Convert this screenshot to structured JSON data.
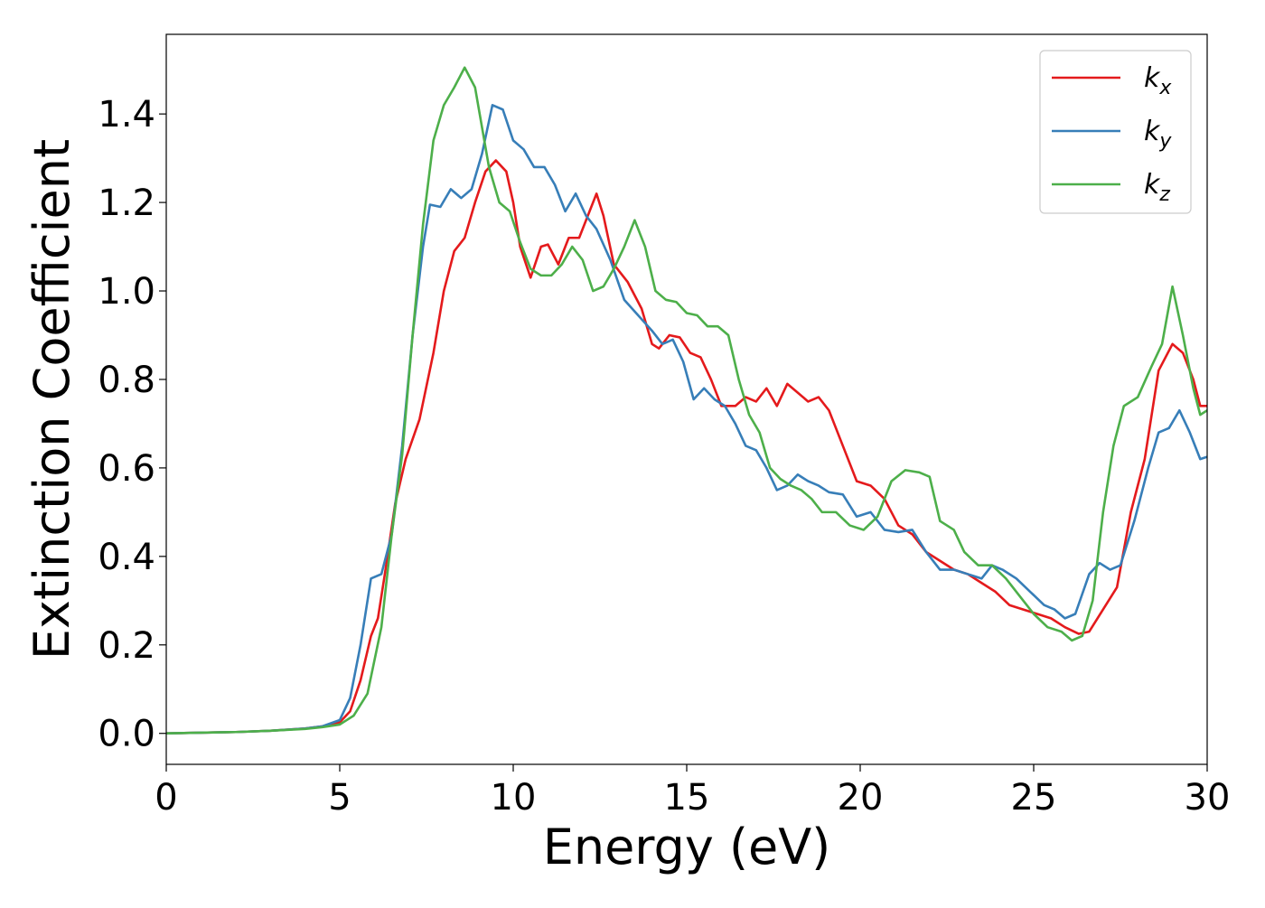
{
  "chart_data": {
    "type": "line",
    "title": "",
    "xlabel": "Energy (eV)",
    "ylabel": "Extinction Coefficient",
    "xlim": [
      0,
      30
    ],
    "ylim": [
      -0.07,
      1.58
    ],
    "xticks": [
      0,
      5,
      10,
      15,
      20,
      25,
      30
    ],
    "xtick_labels": [
      "0",
      "5",
      "10",
      "15",
      "20",
      "25",
      "30"
    ],
    "yticks": [
      0.0,
      0.2,
      0.4,
      0.6,
      0.8,
      1.0,
      1.2,
      1.4
    ],
    "ytick_labels": [
      "0.0",
      "0.2",
      "0.4",
      "0.6",
      "0.8",
      "1.0",
      "1.2",
      "1.4"
    ],
    "grid": false,
    "legend_position": "top-right",
    "series": [
      {
        "name": "k_x",
        "legend_main": "k",
        "legend_sub": "x",
        "color": "#e41a1c",
        "points": [
          [
            0,
            0.0
          ],
          [
            2,
            0.003
          ],
          [
            3,
            0.006
          ],
          [
            4,
            0.011
          ],
          [
            4.5,
            0.016
          ],
          [
            5,
            0.025
          ],
          [
            5.3,
            0.05
          ],
          [
            5.6,
            0.12
          ],
          [
            5.9,
            0.22
          ],
          [
            6.1,
            0.26
          ],
          [
            6.3,
            0.36
          ],
          [
            6.6,
            0.52
          ],
          [
            6.9,
            0.62
          ],
          [
            7.3,
            0.71
          ],
          [
            7.7,
            0.86
          ],
          [
            8.0,
            1.0
          ],
          [
            8.3,
            1.09
          ],
          [
            8.6,
            1.12
          ],
          [
            8.9,
            1.2
          ],
          [
            9.2,
            1.27
          ],
          [
            9.5,
            1.295
          ],
          [
            9.8,
            1.27
          ],
          [
            10.0,
            1.2
          ],
          [
            10.2,
            1.1
          ],
          [
            10.5,
            1.03
          ],
          [
            10.8,
            1.1
          ],
          [
            11.0,
            1.105
          ],
          [
            11.3,
            1.06
          ],
          [
            11.6,
            1.12
          ],
          [
            11.9,
            1.12
          ],
          [
            12.2,
            1.18
          ],
          [
            12.4,
            1.22
          ],
          [
            12.6,
            1.17
          ],
          [
            12.9,
            1.06
          ],
          [
            13.3,
            1.02
          ],
          [
            13.7,
            0.96
          ],
          [
            14.0,
            0.88
          ],
          [
            14.2,
            0.87
          ],
          [
            14.5,
            0.9
          ],
          [
            14.8,
            0.895
          ],
          [
            15.1,
            0.86
          ],
          [
            15.4,
            0.85
          ],
          [
            15.7,
            0.8
          ],
          [
            16.0,
            0.74
          ],
          [
            16.4,
            0.74
          ],
          [
            16.7,
            0.76
          ],
          [
            17.0,
            0.75
          ],
          [
            17.3,
            0.78
          ],
          [
            17.6,
            0.74
          ],
          [
            17.9,
            0.79
          ],
          [
            18.2,
            0.77
          ],
          [
            18.5,
            0.75
          ],
          [
            18.8,
            0.76
          ],
          [
            19.1,
            0.73
          ],
          [
            19.5,
            0.65
          ],
          [
            19.9,
            0.57
          ],
          [
            20.3,
            0.56
          ],
          [
            20.7,
            0.53
          ],
          [
            21.1,
            0.47
          ],
          [
            21.5,
            0.45
          ],
          [
            21.9,
            0.41
          ],
          [
            22.3,
            0.39
          ],
          [
            22.7,
            0.37
          ],
          [
            23.1,
            0.36
          ],
          [
            23.5,
            0.34
          ],
          [
            23.9,
            0.32
          ],
          [
            24.3,
            0.29
          ],
          [
            24.7,
            0.28
          ],
          [
            25.1,
            0.27
          ],
          [
            25.5,
            0.26
          ],
          [
            25.9,
            0.24
          ],
          [
            26.3,
            0.225
          ],
          [
            26.6,
            0.23
          ],
          [
            27.0,
            0.28
          ],
          [
            27.4,
            0.33
          ],
          [
            27.8,
            0.5
          ],
          [
            28.2,
            0.62
          ],
          [
            28.6,
            0.82
          ],
          [
            29.0,
            0.88
          ],
          [
            29.3,
            0.86
          ],
          [
            29.6,
            0.8
          ],
          [
            29.8,
            0.74
          ],
          [
            30,
            0.74
          ]
        ]
      },
      {
        "name": "k_y",
        "legend_main": "k",
        "legend_sub": "y",
        "color": "#377eb8",
        "points": [
          [
            0,
            0.0
          ],
          [
            2,
            0.003
          ],
          [
            3,
            0.006
          ],
          [
            4,
            0.011
          ],
          [
            4.5,
            0.016
          ],
          [
            5,
            0.03
          ],
          [
            5.3,
            0.08
          ],
          [
            5.6,
            0.2
          ],
          [
            5.9,
            0.35
          ],
          [
            6.2,
            0.36
          ],
          [
            6.5,
            0.45
          ],
          [
            6.8,
            0.65
          ],
          [
            7.1,
            0.9
          ],
          [
            7.4,
            1.1
          ],
          [
            7.6,
            1.195
          ],
          [
            7.9,
            1.19
          ],
          [
            8.2,
            1.23
          ],
          [
            8.5,
            1.21
          ],
          [
            8.8,
            1.23
          ],
          [
            9.1,
            1.31
          ],
          [
            9.4,
            1.42
          ],
          [
            9.7,
            1.41
          ],
          [
            10.0,
            1.34
          ],
          [
            10.3,
            1.32
          ],
          [
            10.6,
            1.28
          ],
          [
            10.9,
            1.28
          ],
          [
            11.2,
            1.24
          ],
          [
            11.5,
            1.18
          ],
          [
            11.8,
            1.22
          ],
          [
            12.1,
            1.17
          ],
          [
            12.4,
            1.14
          ],
          [
            12.8,
            1.07
          ],
          [
            13.2,
            0.98
          ],
          [
            13.6,
            0.945
          ],
          [
            14.0,
            0.91
          ],
          [
            14.3,
            0.88
          ],
          [
            14.6,
            0.89
          ],
          [
            14.9,
            0.84
          ],
          [
            15.2,
            0.755
          ],
          [
            15.5,
            0.78
          ],
          [
            15.8,
            0.755
          ],
          [
            16.1,
            0.74
          ],
          [
            16.4,
            0.7
          ],
          [
            16.7,
            0.65
          ],
          [
            17.0,
            0.64
          ],
          [
            17.3,
            0.6
          ],
          [
            17.6,
            0.55
          ],
          [
            17.9,
            0.56
          ],
          [
            18.2,
            0.585
          ],
          [
            18.5,
            0.57
          ],
          [
            18.8,
            0.56
          ],
          [
            19.1,
            0.545
          ],
          [
            19.5,
            0.54
          ],
          [
            19.9,
            0.49
          ],
          [
            20.3,
            0.5
          ],
          [
            20.7,
            0.46
          ],
          [
            21.1,
            0.455
          ],
          [
            21.5,
            0.46
          ],
          [
            21.9,
            0.41
          ],
          [
            22.3,
            0.37
          ],
          [
            22.7,
            0.37
          ],
          [
            23.1,
            0.36
          ],
          [
            23.5,
            0.35
          ],
          [
            23.8,
            0.38
          ],
          [
            24.1,
            0.37
          ],
          [
            24.5,
            0.35
          ],
          [
            24.9,
            0.32
          ],
          [
            25.3,
            0.29
          ],
          [
            25.6,
            0.28
          ],
          [
            25.9,
            0.26
          ],
          [
            26.2,
            0.27
          ],
          [
            26.6,
            0.36
          ],
          [
            26.9,
            0.385
          ],
          [
            27.2,
            0.37
          ],
          [
            27.5,
            0.38
          ],
          [
            27.9,
            0.48
          ],
          [
            28.3,
            0.6
          ],
          [
            28.6,
            0.68
          ],
          [
            28.9,
            0.69
          ],
          [
            29.2,
            0.73
          ],
          [
            29.5,
            0.68
          ],
          [
            29.8,
            0.62
          ],
          [
            30,
            0.625
          ]
        ]
      },
      {
        "name": "k_z",
        "legend_main": "k",
        "legend_sub": "z",
        "color": "#4daf4a",
        "points": [
          [
            0,
            0.0
          ],
          [
            2,
            0.003
          ],
          [
            3,
            0.006
          ],
          [
            4,
            0.01
          ],
          [
            4.5,
            0.014
          ],
          [
            5,
            0.02
          ],
          [
            5.4,
            0.04
          ],
          [
            5.8,
            0.09
          ],
          [
            6.2,
            0.24
          ],
          [
            6.5,
            0.45
          ],
          [
            6.8,
            0.63
          ],
          [
            7.1,
            0.9
          ],
          [
            7.4,
            1.15
          ],
          [
            7.7,
            1.34
          ],
          [
            8.0,
            1.42
          ],
          [
            8.3,
            1.46
          ],
          [
            8.6,
            1.505
          ],
          [
            8.9,
            1.46
          ],
          [
            9.1,
            1.37
          ],
          [
            9.3,
            1.28
          ],
          [
            9.6,
            1.2
          ],
          [
            9.9,
            1.18
          ],
          [
            10.2,
            1.11
          ],
          [
            10.5,
            1.05
          ],
          [
            10.8,
            1.035
          ],
          [
            11.1,
            1.035
          ],
          [
            11.4,
            1.06
          ],
          [
            11.7,
            1.1
          ],
          [
            12.0,
            1.07
          ],
          [
            12.3,
            1.0
          ],
          [
            12.6,
            1.01
          ],
          [
            12.9,
            1.05
          ],
          [
            13.2,
            1.1
          ],
          [
            13.5,
            1.16
          ],
          [
            13.8,
            1.1
          ],
          [
            14.1,
            1.0
          ],
          [
            14.4,
            0.98
          ],
          [
            14.7,
            0.975
          ],
          [
            15.0,
            0.95
          ],
          [
            15.3,
            0.945
          ],
          [
            15.6,
            0.92
          ],
          [
            15.9,
            0.92
          ],
          [
            16.2,
            0.9
          ],
          [
            16.5,
            0.8
          ],
          [
            16.8,
            0.72
          ],
          [
            17.1,
            0.68
          ],
          [
            17.4,
            0.6
          ],
          [
            17.7,
            0.575
          ],
          [
            18.0,
            0.56
          ],
          [
            18.3,
            0.55
          ],
          [
            18.6,
            0.53
          ],
          [
            18.9,
            0.5
          ],
          [
            19.3,
            0.5
          ],
          [
            19.7,
            0.47
          ],
          [
            20.1,
            0.46
          ],
          [
            20.5,
            0.49
          ],
          [
            20.9,
            0.57
          ],
          [
            21.3,
            0.595
          ],
          [
            21.7,
            0.59
          ],
          [
            22.0,
            0.58
          ],
          [
            22.3,
            0.48
          ],
          [
            22.7,
            0.46
          ],
          [
            23.0,
            0.41
          ],
          [
            23.4,
            0.38
          ],
          [
            23.8,
            0.38
          ],
          [
            24.2,
            0.35
          ],
          [
            24.6,
            0.31
          ],
          [
            25.0,
            0.27
          ],
          [
            25.4,
            0.24
          ],
          [
            25.8,
            0.23
          ],
          [
            26.1,
            0.21
          ],
          [
            26.4,
            0.22
          ],
          [
            26.7,
            0.3
          ],
          [
            27.0,
            0.5
          ],
          [
            27.3,
            0.65
          ],
          [
            27.6,
            0.74
          ],
          [
            28.0,
            0.76
          ],
          [
            28.4,
            0.83
          ],
          [
            28.7,
            0.88
          ],
          [
            29.0,
            1.01
          ],
          [
            29.3,
            0.9
          ],
          [
            29.6,
            0.78
          ],
          [
            29.8,
            0.72
          ],
          [
            30,
            0.73
          ]
        ]
      }
    ]
  }
}
